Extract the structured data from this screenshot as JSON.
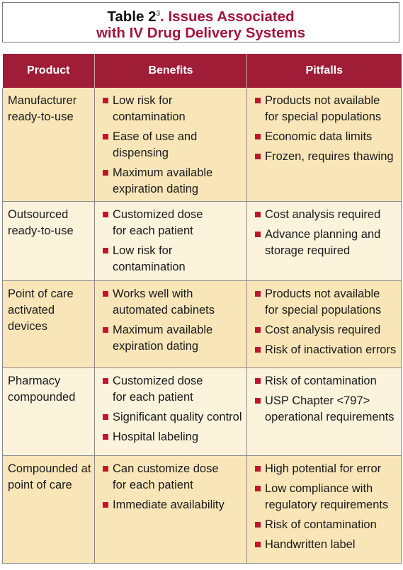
{
  "title": {
    "label": "Table 2",
    "ref": "3",
    "line1_rest": ". Issues Associated",
    "line2": "with IV Drug Delivery Systems"
  },
  "columns": [
    "Product",
    "Benefits",
    "Pitfalls"
  ],
  "rows": [
    {
      "product": [
        "Manufacturer",
        "ready-to-use"
      ],
      "benefits": [
        [
          "Low risk for",
          "contamination"
        ],
        [
          "Ease of use and",
          "dispensing"
        ],
        [
          "Maximum available",
          "expiration dating"
        ]
      ],
      "pitfalls": [
        [
          "Products not available",
          "for special populations"
        ],
        [
          "Economic data limits"
        ],
        [
          "Frozen, requires thawing"
        ]
      ]
    },
    {
      "product": [
        "Outsourced",
        "ready-to-use"
      ],
      "benefits": [
        [
          "Customized dose",
          "for each patient"
        ],
        [
          "Low risk for",
          "contamination"
        ]
      ],
      "pitfalls": [
        [
          "Cost analysis required"
        ],
        [
          "Advance planning and",
          "storage required"
        ]
      ]
    },
    {
      "product": [
        "Point of care",
        "activated",
        "devices"
      ],
      "benefits": [
        [
          "Works well with",
          "automated cabinets"
        ],
        [
          "Maximum available",
          "expiration dating"
        ]
      ],
      "pitfalls": [
        [
          "Products not available",
          "for special populations"
        ],
        [
          "Cost analysis required"
        ],
        [
          "Risk of inactivation errors"
        ]
      ]
    },
    {
      "product": [
        "Pharmacy",
        "compounded"
      ],
      "benefits": [
        [
          "Customized dose",
          "for each patient"
        ],
        [
          "Significant quality control"
        ],
        [
          "Hospital labeling"
        ]
      ],
      "pitfalls": [
        [
          "Risk of contamination"
        ],
        [
          "USP Chapter <797>",
          "operational requirements"
        ]
      ]
    },
    {
      "product": [
        "Compounded at",
        "point of care"
      ],
      "benefits": [
        [
          "Can customize dose",
          "for each patient"
        ],
        [
          "Immediate availability"
        ]
      ],
      "pitfalls": [
        [
          "High potential for error"
        ],
        [
          "Low compliance with",
          "regulatory requirements"
        ],
        [
          "Risk of contamination"
        ],
        [
          "Handwritten label"
        ]
      ]
    }
  ],
  "colors": {
    "header_bg": "#9f1d37",
    "title_red": "#a3143b",
    "bullet": "#c0152e",
    "row_dark": "#f9e6b8",
    "row_light": "#fcf3dd"
  }
}
